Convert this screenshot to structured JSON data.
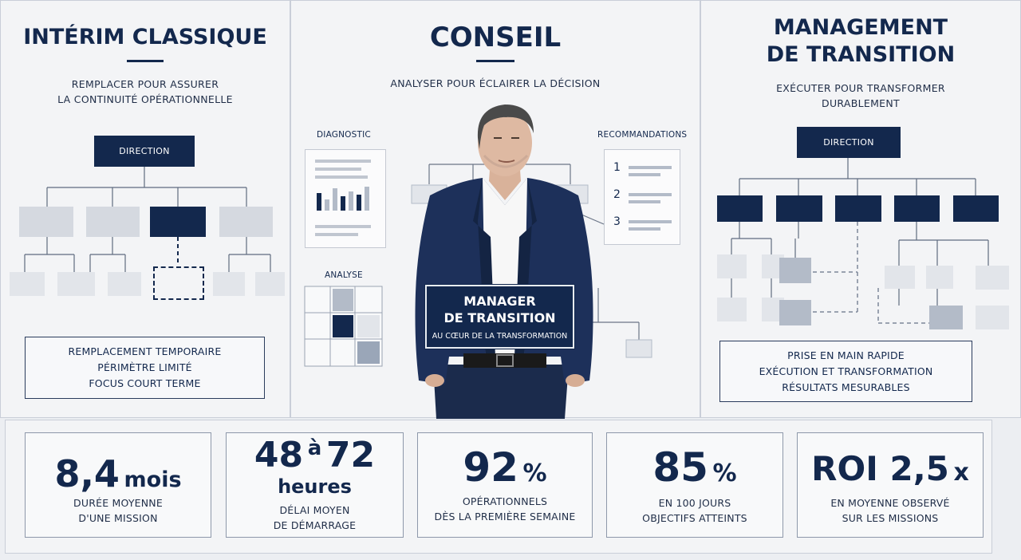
{
  "columns": {
    "interim": {
      "title": "INTÉRIM CLASSIQUE",
      "subtitle_line1": "REMPLACER POUR ASSURER",
      "subtitle_line2": "LA CONTINUITÉ OPÉRATIONNELLE",
      "org_top": "DIRECTION",
      "features": [
        "REMPLACEMENT TEMPORAIRE",
        "PÉRIMÈTRE LIMITÉ",
        "FOCUS COURT TERME"
      ]
    },
    "conseil": {
      "title": "CONSEIL",
      "subtitle": "ANALYSER POUR ÉCLAIRER LA DÉCISION",
      "diagnostic_label": "DIAGNOSTIC",
      "recommandations_label": "RECOMMANDATIONS",
      "analyse_label": "ANALYSE",
      "reco_numbers": [
        "1",
        "2",
        "3"
      ],
      "manager_line1": "MANAGER",
      "manager_line2": "DE TRANSITION",
      "manager_line3": "AU CŒUR DE LA TRANSFORMATION"
    },
    "management": {
      "title_line1": "MANAGEMENT",
      "title_line2": "DE TRANSITION",
      "subtitle_line1": "EXÉCUTER POUR TRANSFORMER",
      "subtitle_line2": "DURABLEMENT",
      "org_top": "DIRECTION",
      "features": [
        "PRISE EN MAIN RAPIDE",
        "EXÉCUTION ET TRANSFORMATION",
        "RÉSULTATS MESURABLES"
      ]
    }
  },
  "stats": [
    {
      "value": "8,4",
      "unit": "mois",
      "label_line1": "DURÉE MOYENNE",
      "label_line2": "D'UNE MISSION"
    },
    {
      "value": "48",
      "connector": "à",
      "value2": "72",
      "unit": "heures",
      "label_line1": "DÉLAI MOYEN",
      "label_line2": "DE DÉMARRAGE"
    },
    {
      "value": "92",
      "unit": "%",
      "label_line1": "OPÉRATIONNELS",
      "label_line2": "DÈS LA PREMIÈRE SEMAINE"
    },
    {
      "value": "85",
      "unit": "%",
      "label_line1": "EN 100 JOURS",
      "label_line2": "OBJECTIFS ATTEINTS"
    },
    {
      "value": "ROI 2,5",
      "unit": "x",
      "label_line1": "EN MOYENNE OBSERVÉ",
      "label_line2": "SUR LES MISSIONS"
    }
  ],
  "colors": {
    "navy": "#13284d",
    "light_box": "#d5d9e0",
    "background": "#f3f4f6"
  }
}
